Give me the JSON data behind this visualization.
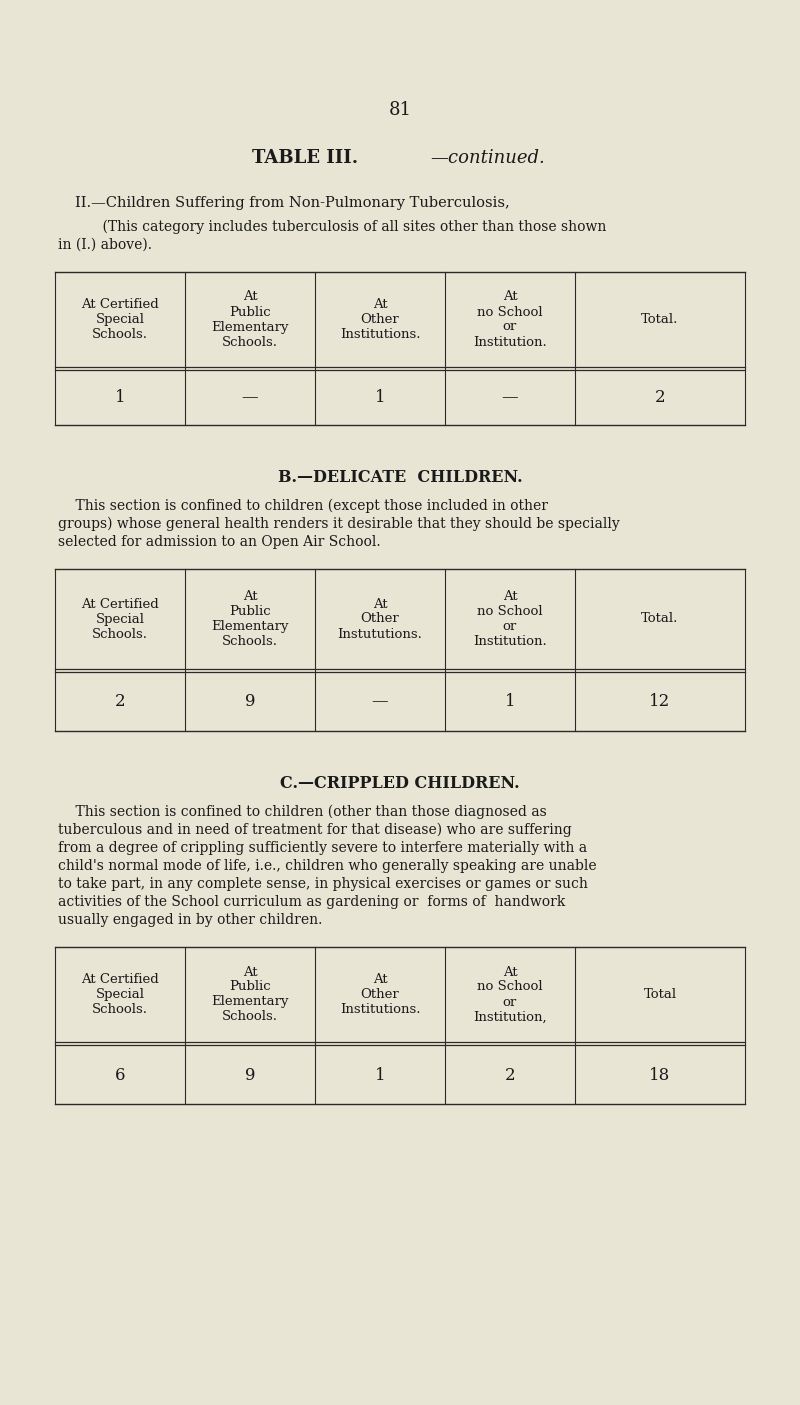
{
  "bg_color": "#e8e5d4",
  "text_color": "#1a1a1a",
  "page_number": "81",
  "table_title_bold": "TABLE III.",
  "table_title_italic": "—continued.",
  "section_II_heading": "II.—Children Suffering from Non-Pulmonary Tuberculosis,",
  "section_II_desc_l1": "    (This category includes tuberculosis of all sites other than those shown",
  "section_II_desc_l2": "in (I.) above).",
  "section_B_heading": "B.—DELICATE  CHILDREN.",
  "section_B_desc_lines": [
    "    This section is confined to children (except those included in other",
    "groups) whose general health renders it desirable that they should be specially",
    "selected for admission to an Open Air School."
  ],
  "section_C_heading": "C.—CRIPPLED CHILDREN.",
  "section_C_desc_lines": [
    "    This section is confined to children (other than those diagnosed as",
    "tuberculous and in need of treatment for that disease) who are suffering",
    "from a degree of crippling sufficiently severe to interfere materially with a",
    "child's normal mode of life, i.e., children who generally speaking are unable",
    "to take part, in any complete sense, in physical exercises or games or such",
    "activities of the School curriculum as gardening or  forms of  handwork",
    "usually engaged in by other children."
  ],
  "col_headers_II": [
    "At Certified\nSpecial\nSchools.",
    "At\nPublic\nElementary\nSchools.",
    "At\nOther\nInstitutions.",
    "At\nno School\nor\nInstitution.",
    "Total."
  ],
  "col_headers_B": [
    "At Certified\nSpecial\nSchools.",
    "At\nPublic\nElementary\nSchools.",
    "At\nOther\nInstututions.",
    "At\nno School\nor\nInstitution.",
    "Total."
  ],
  "col_headers_C": [
    "At Certified\nSpecial\nSchools.",
    "At\nPublic\nElementary\nSchools.",
    "At\nOther\nInstitutions.",
    "At\nno School\nor\nInstitution,",
    "Total"
  ],
  "table_II_data": [
    "1",
    "—",
    "1",
    "—",
    "2"
  ],
  "table_B_data": [
    "2",
    "9",
    "—",
    "1",
    "12"
  ],
  "table_C_data": [
    "6",
    "9",
    "1",
    "2",
    "18"
  ]
}
